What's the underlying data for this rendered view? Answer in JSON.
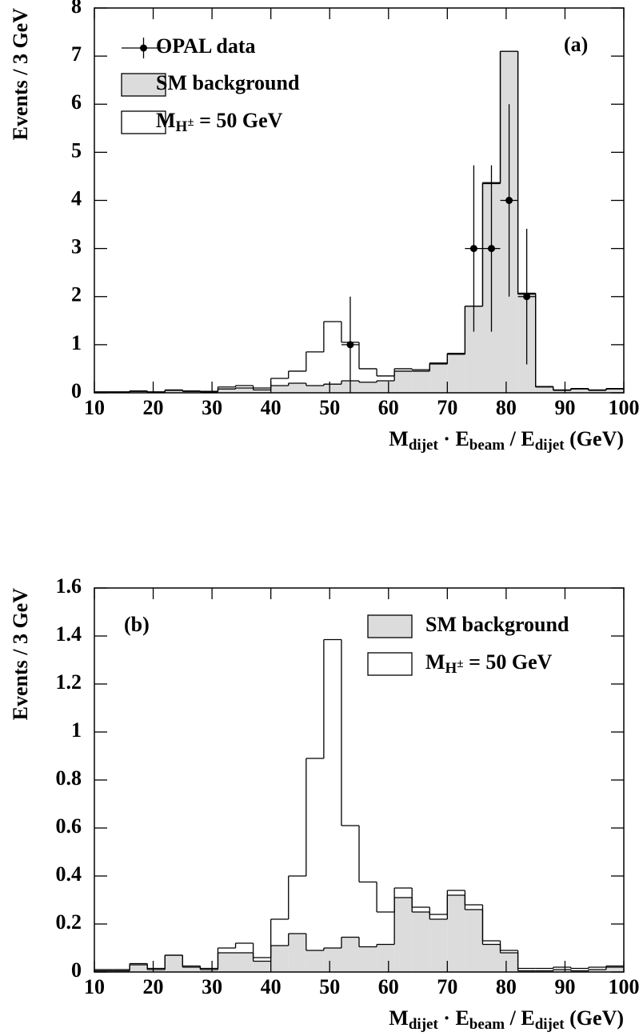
{
  "chart_data": [
    {
      "type": "histogram",
      "panel_label": "(a)",
      "y_label": "Events / 3 GeV",
      "x_label": [
        "M",
        "dijet",
        " · E",
        "beam",
        " / E",
        "dijet",
        " (GeV)"
      ],
      "bins": [
        10,
        13,
        16,
        19,
        22,
        25,
        28,
        31,
        34,
        37,
        40,
        43,
        46,
        49,
        52,
        55,
        58,
        61,
        64,
        67,
        70,
        73,
        76,
        79,
        82,
        85,
        88,
        91,
        94,
        97,
        100
      ],
      "xlim": [
        10,
        100
      ],
      "xticks": [
        10,
        20,
        30,
        40,
        50,
        60,
        70,
        80,
        90,
        100
      ],
      "ylim": [
        0,
        8
      ],
      "yticks": [
        0,
        1,
        2,
        3,
        4,
        5,
        6,
        7,
        8
      ],
      "legend": "upper left",
      "series": [
        {
          "name": "SM background",
          "color": "#dcdcdc",
          "values": [
            0.01,
            0.01,
            0.03,
            0.01,
            0.05,
            0.03,
            0.02,
            0.08,
            0.1,
            0.06,
            0.15,
            0.2,
            0.15,
            0.18,
            0.25,
            0.22,
            0.25,
            0.45,
            0.45,
            0.6,
            0.8,
            1.8,
            4.35,
            7.1,
            2.05,
            0.12,
            0.05,
            0.08,
            0.05,
            0.08
          ]
        },
        {
          "name": [
            "M",
            "H",
            "±",
            " = 50 GeV"
          ],
          "color": "#ffffff",
          "values": [
            0.02,
            0.02,
            0.04,
            0.02,
            0.06,
            0.04,
            0.03,
            0.12,
            0.15,
            0.1,
            0.3,
            0.45,
            0.85,
            1.48,
            1.05,
            0.5,
            0.35,
            0.5,
            0.48,
            0.62,
            0.82,
            1.8,
            4.37,
            7.1,
            2.07,
            0.13,
            0.06,
            0.09,
            0.06,
            0.09
          ]
        }
      ],
      "points": {
        "name": "OPAL data",
        "x": [
          53.5,
          74.5,
          77.5,
          80.5,
          83.5
        ],
        "y": [
          1,
          3,
          3,
          4,
          2
        ],
        "yerr": [
          1,
          1.73,
          1.73,
          2,
          1.41
        ],
        "xerr": 1.5
      }
    },
    {
      "type": "histogram",
      "panel_label": "(b)",
      "y_label": "Events / 3 GeV",
      "x_label": [
        "M",
        "dijet",
        " · E",
        "beam",
        " / E",
        "dijet",
        " (GeV)"
      ],
      "bins": [
        10,
        13,
        16,
        19,
        22,
        25,
        28,
        31,
        34,
        37,
        40,
        43,
        46,
        49,
        52,
        55,
        58,
        61,
        64,
        67,
        70,
        73,
        76,
        79,
        82,
        85,
        88,
        91,
        94,
        97,
        100
      ],
      "xlim": [
        10,
        100
      ],
      "xticks": [
        10,
        20,
        30,
        40,
        50,
        60,
        70,
        80,
        90,
        100
      ],
      "ylim": [
        0,
        1.6
      ],
      "yticks": [
        0,
        0.2,
        0.4,
        0.6,
        0.8,
        1,
        1.2,
        1.4,
        1.6
      ],
      "legend": "upper right",
      "series": [
        {
          "name": "SM background",
          "color": "#dcdcdc",
          "values": [
            0.005,
            0.005,
            0.03,
            0.01,
            0.07,
            0.02,
            0.01,
            0.08,
            0.08,
            0.045,
            0.11,
            0.16,
            0.09,
            0.1,
            0.145,
            0.105,
            0.115,
            0.31,
            0.25,
            0.22,
            0.32,
            0.26,
            0.115,
            0.08,
            0.005,
            0.005,
            0.01,
            0.005,
            0.01,
            0.02
          ]
        },
        {
          "name": [
            "M",
            "H",
            "±",
            " = 50 GeV"
          ],
          "color": "#ffffff",
          "values": [
            0.01,
            0.01,
            0.035,
            0.015,
            0.07,
            0.025,
            0.015,
            0.1,
            0.12,
            0.06,
            0.22,
            0.4,
            0.89,
            1.385,
            0.61,
            0.375,
            0.25,
            0.35,
            0.27,
            0.24,
            0.34,
            0.28,
            0.13,
            0.09,
            0.015,
            0.015,
            0.02,
            0.015,
            0.02,
            0.025
          ]
        }
      ]
    }
  ]
}
